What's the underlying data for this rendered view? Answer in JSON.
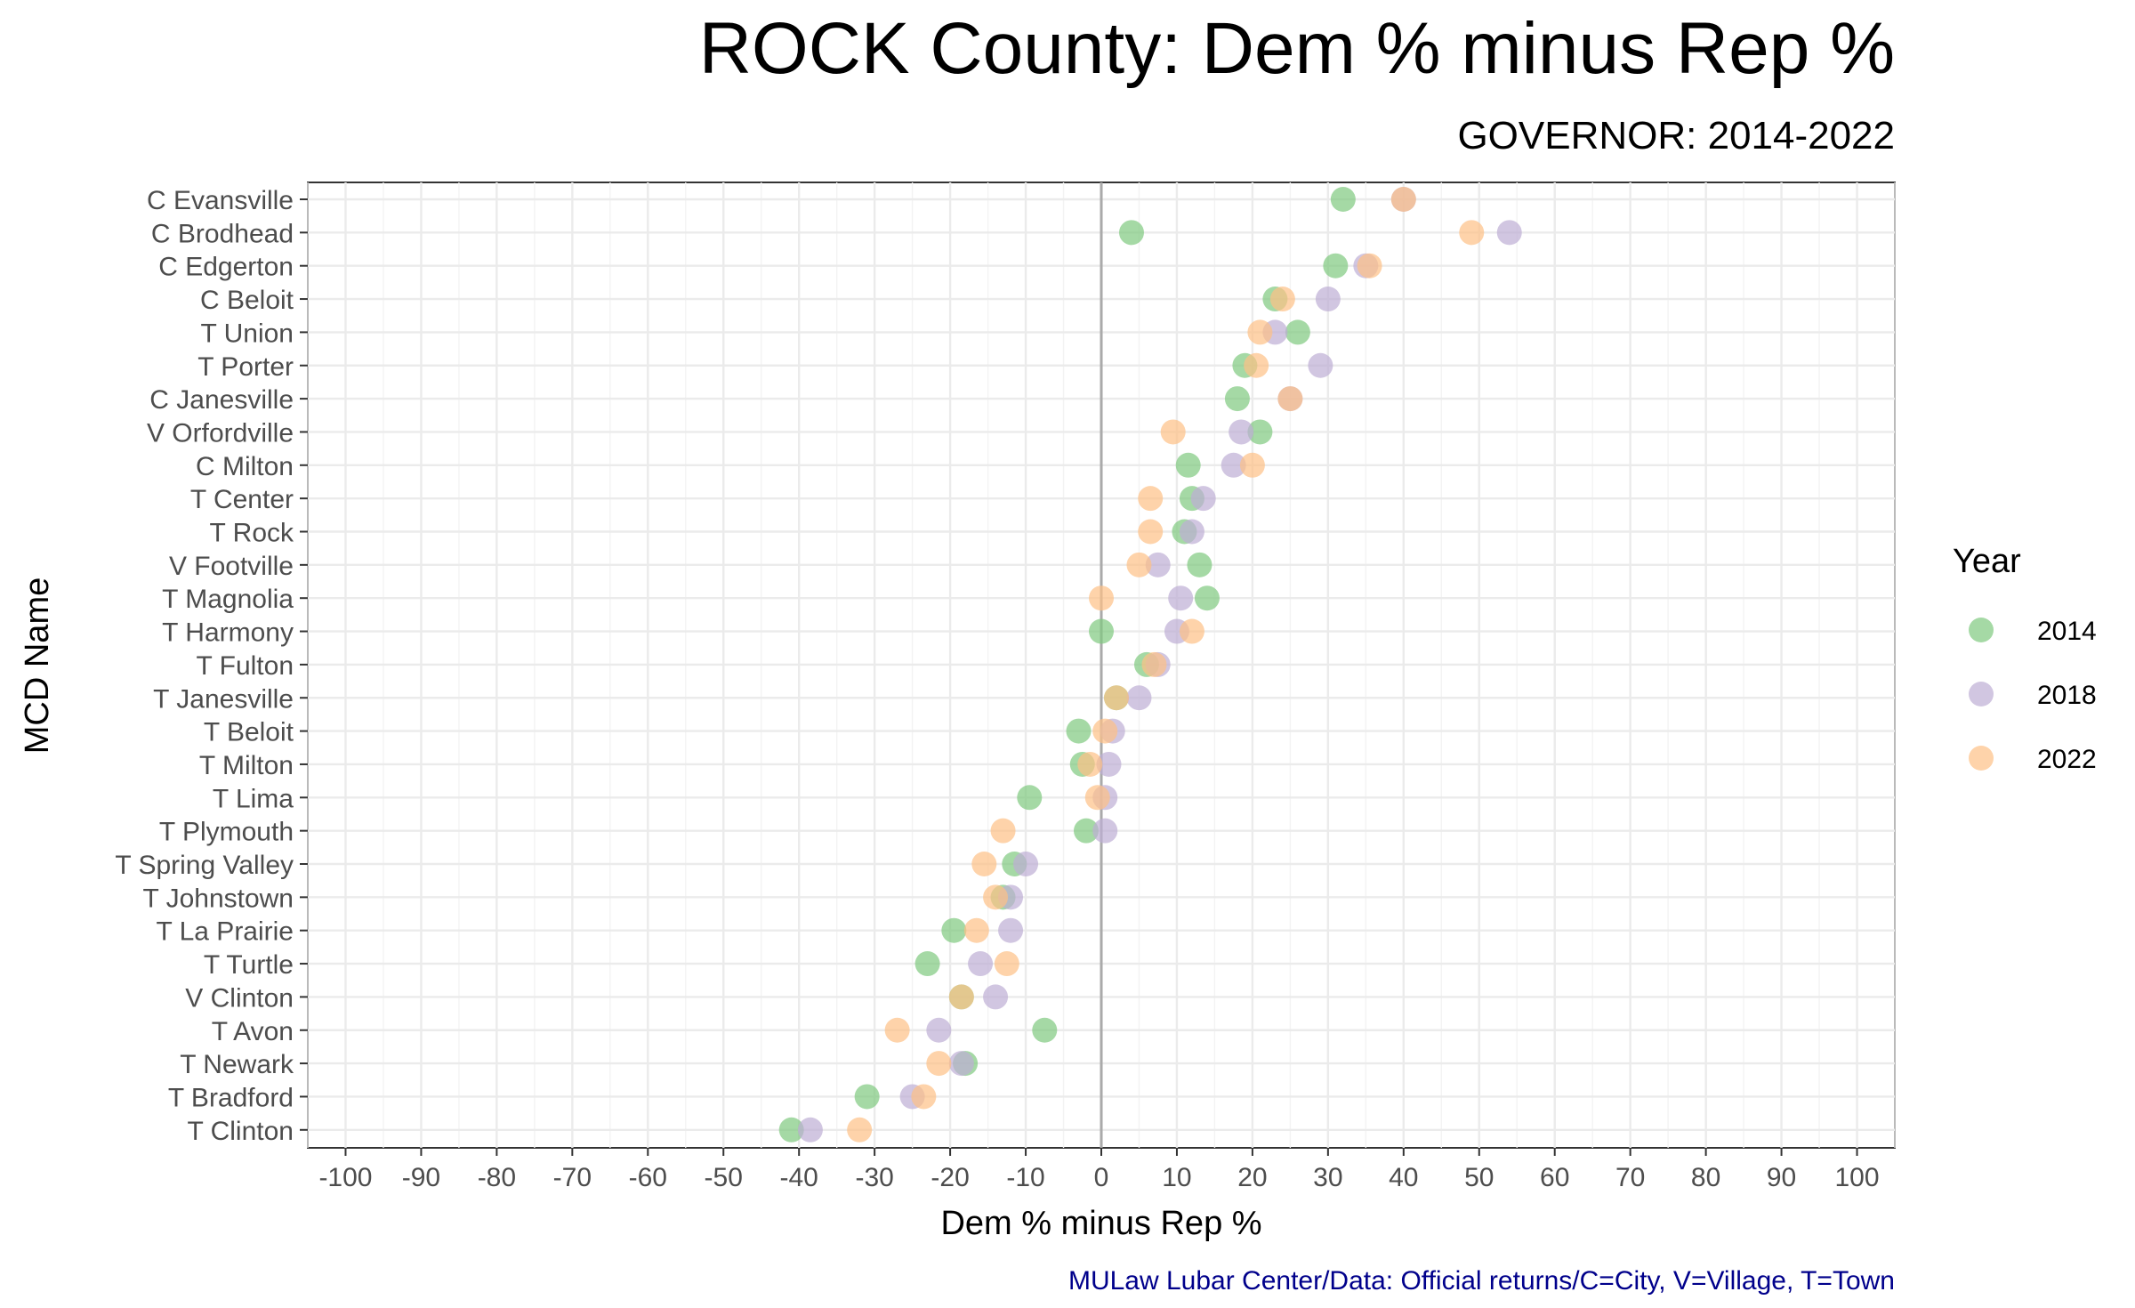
{
  "chart_data": {
    "type": "scatter",
    "title": "ROCK County: Dem % minus Rep %",
    "subtitle": "GOVERNOR: 2014-2022",
    "xlabel": "Dem % minus Rep %",
    "ylabel": "MCD Name",
    "xlim": [
      -105,
      105
    ],
    "xticks": [
      -100,
      -90,
      -80,
      -70,
      -60,
      -50,
      -40,
      -30,
      -20,
      -10,
      0,
      10,
      20,
      30,
      40,
      50,
      60,
      70,
      80,
      90,
      100
    ],
    "caption": "MULaw Lubar Center/Data: Official returns/C=City, V=Village, T=Town",
    "legend": {
      "title": "Year",
      "position": "right",
      "entries": [
        {
          "name": "2014",
          "color": "#7fc97f"
        },
        {
          "name": "2018",
          "color": "#beaed4"
        },
        {
          "name": "2022",
          "color": "#fdc086"
        }
      ]
    },
    "categories": [
      "C Evansville",
      "C Brodhead",
      "C Edgerton",
      "C Beloit",
      "T Union",
      "T Porter",
      "C Janesville",
      "V Orfordville",
      "C Milton",
      "T Center",
      "T Rock",
      "V Footville",
      "T Magnolia",
      "T Harmony",
      "T Fulton",
      "T Janesville",
      "T Beloit",
      "T Milton",
      "T Lima",
      "T Plymouth",
      "T Spring Valley",
      "T Johnstown",
      "T La Prairie",
      "T Turtle",
      "V Clinton",
      "T Avon",
      "T Newark",
      "T Bradford",
      "T Clinton"
    ],
    "series": [
      {
        "name": "2014",
        "color": "#7fc97f",
        "values": [
          32,
          4,
          31,
          23,
          26,
          19,
          18,
          21,
          11.5,
          12,
          11,
          13,
          14,
          0,
          6,
          2,
          -3,
          -2.5,
          -9.5,
          -2,
          -11.5,
          -13,
          -19.5,
          -23,
          -18.5,
          -7.5,
          -18,
          -31,
          -41
        ]
      },
      {
        "name": "2018",
        "color": "#beaed4",
        "values": [
          40,
          54,
          35,
          30,
          23,
          29,
          25,
          18.5,
          17.5,
          13.5,
          12,
          7.5,
          10.5,
          10,
          7.5,
          5,
          1.5,
          1,
          0.5,
          0.5,
          -10,
          -12,
          -12,
          -16,
          -14,
          -21.5,
          -18.5,
          -25,
          -38.5
        ]
      },
      {
        "name": "2022",
        "color": "#fdc086",
        "values": [
          40,
          49,
          35.5,
          24,
          21,
          20.5,
          25,
          9.5,
          20,
          6.5,
          6.5,
          5,
          0,
          12,
          7,
          2,
          0.5,
          -1.5,
          -0.5,
          -13,
          -15.5,
          -14,
          -16.5,
          -12.5,
          -18.5,
          -27,
          -21.5,
          -23.5,
          -32
        ]
      }
    ]
  }
}
